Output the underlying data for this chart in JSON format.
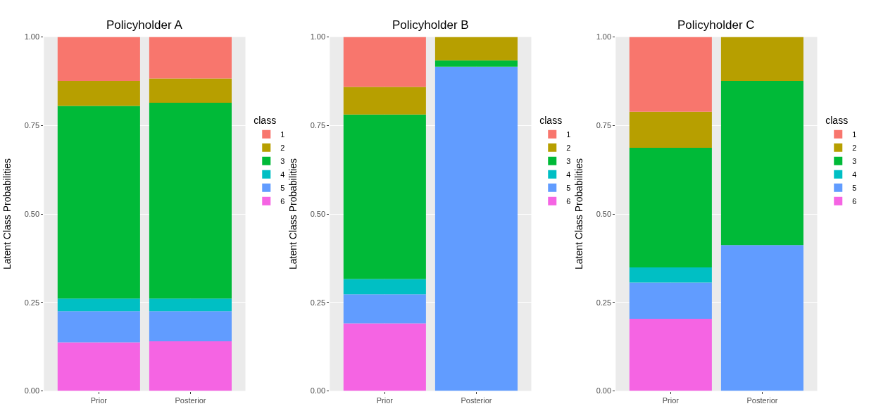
{
  "chart_data": [
    {
      "type": "bar",
      "stacked": true,
      "title": "Policyholder A",
      "ylabel": "Latent Class Probabilities",
      "legend_title": "class",
      "legend": "right",
      "grid": true,
      "categories": [
        "Prior",
        "Posterior"
      ],
      "ylim": [
        0,
        1
      ],
      "yticks": [
        {
          "value": 0,
          "label": "0.00"
        },
        {
          "value": 0.25,
          "label": "0.25"
        },
        {
          "value": 0.5,
          "label": "0.50"
        },
        {
          "value": 0.75,
          "label": "0.75"
        },
        {
          "value": 1,
          "label": "1.00"
        }
      ],
      "series": [
        {
          "name": "6",
          "color": "#f564e3",
          "values": [
            0.137,
            0.14
          ]
        },
        {
          "name": "5",
          "color": "#619cff",
          "values": [
            0.088,
            0.085
          ]
        },
        {
          "name": "4",
          "color": "#00bfc4",
          "values": [
            0.036,
            0.036
          ]
        },
        {
          "name": "3",
          "color": "#00ba38",
          "values": [
            0.544,
            0.553
          ]
        },
        {
          "name": "2",
          "color": "#b79f00",
          "values": [
            0.071,
            0.069
          ]
        },
        {
          "name": "1",
          "color": "#f8766d",
          "values": [
            0.124,
            0.117
          ]
        }
      ]
    },
    {
      "type": "bar",
      "stacked": true,
      "title": "Policyholder B",
      "ylabel": "Latent Class Probabilities",
      "legend_title": "class",
      "legend": "right",
      "grid": true,
      "categories": [
        "Prior",
        "Posterior"
      ],
      "ylim": [
        0,
        1
      ],
      "yticks": [
        {
          "value": 0,
          "label": "0.00"
        },
        {
          "value": 0.25,
          "label": "0.25"
        },
        {
          "value": 0.5,
          "label": "0.50"
        },
        {
          "value": 0.75,
          "label": "0.75"
        },
        {
          "value": 1,
          "label": "1.00"
        }
      ],
      "series": [
        {
          "name": "6",
          "color": "#f564e3",
          "values": [
            0.191,
            0
          ]
        },
        {
          "name": "5",
          "color": "#619cff",
          "values": [
            0.082,
            0.916
          ]
        },
        {
          "name": "4",
          "color": "#00bfc4",
          "values": [
            0.043,
            0
          ]
        },
        {
          "name": "3",
          "color": "#00ba38",
          "values": [
            0.465,
            0.018
          ]
        },
        {
          "name": "2",
          "color": "#b79f00",
          "values": [
            0.078,
            0.066
          ]
        },
        {
          "name": "1",
          "color": "#f8766d",
          "values": [
            0.141,
            0
          ]
        }
      ]
    },
    {
      "type": "bar",
      "stacked": true,
      "title": "Policyholder C",
      "ylabel": "Latent Class Probabilities",
      "legend_title": "class",
      "legend": "right",
      "grid": true,
      "categories": [
        "Prior",
        "Posterior"
      ],
      "ylim": [
        0,
        1
      ],
      "yticks": [
        {
          "value": 0,
          "label": "0.00"
        },
        {
          "value": 0.25,
          "label": "0.25"
        },
        {
          "value": 0.5,
          "label": "0.50"
        },
        {
          "value": 0.75,
          "label": "0.75"
        },
        {
          "value": 1,
          "label": "1.00"
        }
      ],
      "series": [
        {
          "name": "6",
          "color": "#f564e3",
          "values": [
            0.204,
            0
          ]
        },
        {
          "name": "5",
          "color": "#619cff",
          "values": [
            0.102,
            0.412
          ]
        },
        {
          "name": "4",
          "color": "#00bfc4",
          "values": [
            0.043,
            0
          ]
        },
        {
          "name": "3",
          "color": "#00ba38",
          "values": [
            0.338,
            0.464
          ]
        },
        {
          "name": "2",
          "color": "#b79f00",
          "values": [
            0.102,
            0.124
          ]
        },
        {
          "name": "1",
          "color": "#f8766d",
          "values": [
            0.211,
            0
          ]
        }
      ]
    }
  ]
}
